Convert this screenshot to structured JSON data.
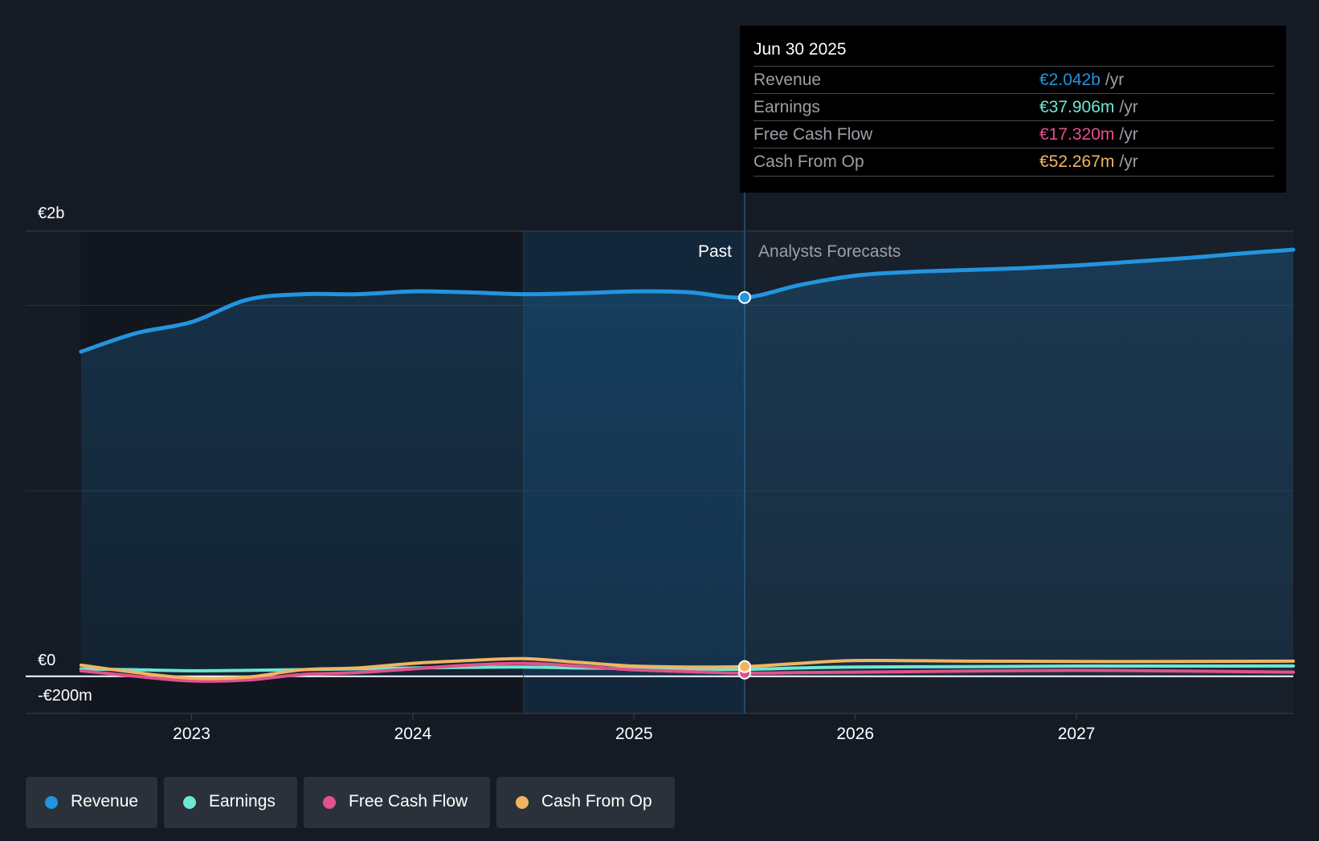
{
  "tooltip": {
    "date": "Jun 30 2025",
    "rows": [
      {
        "label": "Revenue",
        "value": "€2.042b",
        "unit": "/yr",
        "color": "#2394df"
      },
      {
        "label": "Earnings",
        "value": "€37.906m",
        "unit": "/yr",
        "color": "#6ee7d4"
      },
      {
        "label": "Free Cash Flow",
        "value": "€17.320m",
        "unit": "/yr",
        "color": "#e0528c"
      },
      {
        "label": "Cash From Op",
        "value": "€52.267m",
        "unit": "/yr",
        "color": "#f0b562"
      }
    ]
  },
  "legend": [
    {
      "label": "Revenue",
      "color": "#2394df"
    },
    {
      "label": "Earnings",
      "color": "#6ee7d4"
    },
    {
      "label": "Free Cash Flow",
      "color": "#e0528c"
    },
    {
      "label": "Cash From Op",
      "color": "#f0b562"
    }
  ],
  "chart_data": {
    "type": "area",
    "title": "",
    "xlabel": "",
    "ylabel": "",
    "ylim": [
      -200,
      2400
    ],
    "xlim": [
      2022.25,
      2027.98
    ],
    "y_tick_labels": [
      {
        "value": 2400,
        "label": "€2b"
      },
      {
        "value": 0,
        "label": "€0"
      },
      {
        "value": -200,
        "label": "-€200m"
      }
    ],
    "x_ticks": [
      {
        "value": 2023,
        "label": "2023"
      },
      {
        "value": 2024,
        "label": "2024"
      },
      {
        "value": 2025,
        "label": "2025"
      },
      {
        "value": 2026,
        "label": "2026"
      },
      {
        "value": 2027,
        "label": "2027"
      }
    ],
    "past_label": "Past",
    "forecast_label": "Analysts Forecasts",
    "highlight_start": 2024.5,
    "divider_x": 2025.5,
    "series": [
      {
        "name": "Revenue",
        "color": "#2394df",
        "x": [
          2022.5,
          2022.75,
          2023.0,
          2023.25,
          2023.5,
          2023.75,
          2024.0,
          2024.25,
          2024.5,
          2024.75,
          2025.0,
          2025.25,
          2025.5,
          2025.75,
          2026.0,
          2026.25,
          2026.5,
          2026.75,
          2027.0,
          2027.25,
          2027.5,
          2027.75,
          2027.98
        ],
        "values": [
          1750,
          1850,
          1910,
          2030,
          2060,
          2060,
          2075,
          2070,
          2060,
          2065,
          2075,
          2070,
          2042,
          2110,
          2160,
          2180,
          2190,
          2200,
          2215,
          2235,
          2255,
          2280,
          2300
        ]
      },
      {
        "name": "Earnings",
        "color": "#6ee7d4",
        "x": [
          2022.5,
          2022.75,
          2023.0,
          2023.25,
          2023.5,
          2023.75,
          2024.0,
          2024.25,
          2024.5,
          2024.75,
          2025.0,
          2025.25,
          2025.5,
          2025.75,
          2026.0,
          2026.5,
          2027.0,
          2027.5,
          2027.98
        ],
        "values": [
          40,
          35,
          30,
          32,
          36,
          40,
          45,
          48,
          50,
          45,
          42,
          40,
          37.9,
          45,
          50,
          52,
          55,
          55,
          56
        ]
      },
      {
        "name": "Free Cash Flow",
        "color": "#e0528c",
        "x": [
          2022.5,
          2022.75,
          2023.0,
          2023.25,
          2023.5,
          2023.75,
          2024.0,
          2024.25,
          2024.5,
          2024.75,
          2025.0,
          2025.25,
          2025.5,
          2025.75,
          2026.0,
          2026.5,
          2027.0,
          2027.5,
          2027.98
        ],
        "values": [
          30,
          0,
          -25,
          -20,
          10,
          20,
          40,
          60,
          70,
          55,
          35,
          25,
          17.3,
          20,
          22,
          28,
          32,
          28,
          22
        ]
      },
      {
        "name": "Cash From Op",
        "color": "#f0b562",
        "x": [
          2022.5,
          2022.75,
          2023.0,
          2023.25,
          2023.5,
          2023.75,
          2024.0,
          2024.25,
          2024.5,
          2024.75,
          2025.0,
          2025.25,
          2025.5,
          2025.75,
          2026.0,
          2026.5,
          2027.0,
          2027.5,
          2027.98
        ],
        "values": [
          60,
          20,
          -10,
          -5,
          35,
          45,
          70,
          85,
          95,
          75,
          55,
          50,
          52.3,
          70,
          85,
          82,
          80,
          80,
          82
        ]
      }
    ]
  }
}
